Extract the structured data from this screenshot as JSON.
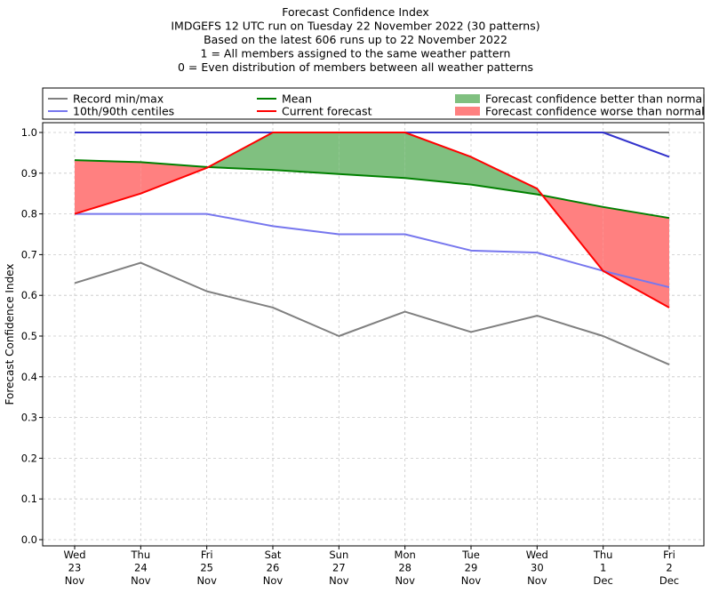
{
  "chart_data": {
    "type": "line",
    "title_lines": [
      "Forecast Confidence Index",
      "IMDGEFS 12 UTC run on Tuesday 22 November 2022 (30 patterns)",
      "Based on the latest 606 runs up to 22 November 2022",
      "1 = All members assigned to the same weather pattern",
      "0 = Even distribution of members between all weather patterns"
    ],
    "ylabel": "Forecast Confidence Index",
    "ylim": [
      0,
      1.0
    ],
    "yticks": [
      "0.0",
      "0.1",
      "0.2",
      "0.3",
      "0.4",
      "0.5",
      "0.6",
      "0.7",
      "0.8",
      "0.9",
      "1.0"
    ],
    "grid": true,
    "legend_position": "top",
    "categories": [
      [
        "Wed",
        "23",
        "Nov"
      ],
      [
        "Thu",
        "24",
        "Nov"
      ],
      [
        "Fri",
        "25",
        "Nov"
      ],
      [
        "Sat",
        "26",
        "Nov"
      ],
      [
        "Sun",
        "27",
        "Nov"
      ],
      [
        "Mon",
        "28",
        "Nov"
      ],
      [
        "Tue",
        "29",
        "Nov"
      ],
      [
        "Wed",
        "30",
        "Nov"
      ],
      [
        "Thu",
        "1",
        "Dec"
      ],
      [
        "Fri",
        "2",
        "Dec"
      ]
    ],
    "series": {
      "record_min": [
        0.63,
        0.68,
        0.61,
        0.57,
        0.5,
        0.56,
        0.51,
        0.55,
        0.5,
        0.43
      ],
      "record_max": [
        1.0,
        1.0,
        1.0,
        1.0,
        1.0,
        1.0,
        1.0,
        1.0,
        1.0,
        1.0
      ],
      "p10": [
        0.8,
        0.8,
        0.8,
        0.77,
        0.75,
        0.75,
        0.71,
        0.705,
        0.66,
        0.62
      ],
      "p90": [
        1.0,
        1.0,
        1.0,
        1.0,
        1.0,
        1.0,
        1.0,
        1.0,
        1.0,
        0.94
      ],
      "mean": [
        0.932,
        0.927,
        0.915,
        0.908,
        0.898,
        0.888,
        0.872,
        0.848,
        0.817,
        0.79
      ],
      "current": [
        0.8,
        0.85,
        0.913,
        1.0,
        1.0,
        1.0,
        0.94,
        0.862,
        0.66,
        0.57
      ]
    },
    "legend": {
      "record": "Record min/max",
      "centiles": "10th/90th centiles",
      "mean": "Mean",
      "current": "Current forecast",
      "better": "Forecast confidence better than normal",
      "worse": "Forecast confidence worse than normal"
    },
    "colors": {
      "record": "#808080",
      "centiles": "#7777ee",
      "mean": "#008000",
      "current": "#ff0000",
      "better": "#80c080",
      "worse": "#ff8080",
      "overlap": "#3333cc"
    }
  }
}
